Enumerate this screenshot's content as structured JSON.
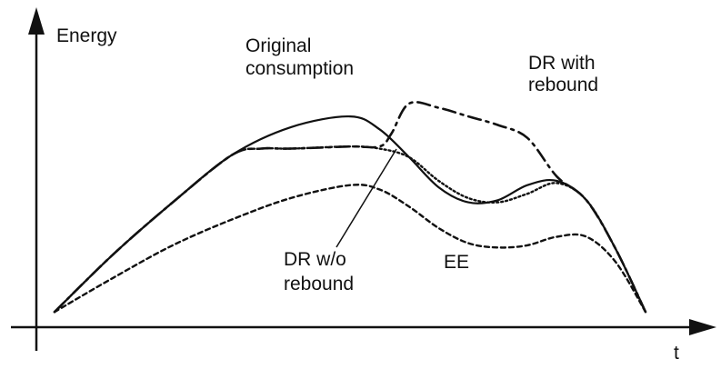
{
  "chart_data": {
    "type": "line",
    "xlabel": "t",
    "ylabel": "Energy",
    "series": [
      {
        "name": "Original consumption",
        "label_lines": [
          "Original",
          "consumption"
        ],
        "style": "solid",
        "x": [
          0,
          0.1,
          0.2,
          0.3,
          0.4,
          0.5,
          0.55,
          0.6,
          0.65,
          0.7,
          0.75,
          0.8,
          0.85,
          0.9,
          0.95,
          1.0
        ],
        "y": [
          0.05,
          0.32,
          0.56,
          0.78,
          0.91,
          0.96,
          0.9,
          0.77,
          0.63,
          0.56,
          0.57,
          0.64,
          0.66,
          0.57,
          0.34,
          0.05
        ]
      },
      {
        "name": "DR with rebound",
        "label_lines": [
          "DR with",
          "rebound"
        ],
        "style": "dash-dot",
        "x": [
          0,
          0.1,
          0.2,
          0.3,
          0.35,
          0.4,
          0.5,
          0.55,
          0.57,
          0.6,
          0.65,
          0.7,
          0.75,
          0.8,
          0.85,
          0.9,
          0.95,
          1.0
        ],
        "y": [
          0.05,
          0.32,
          0.56,
          0.78,
          0.81,
          0.81,
          0.82,
          0.82,
          0.88,
          1.02,
          1.0,
          0.96,
          0.92,
          0.86,
          0.68,
          0.57,
          0.34,
          0.05
        ]
      },
      {
        "name": "DR w/o rebound",
        "label_lines": [
          "DR w/o",
          "rebound"
        ],
        "style": "dotted",
        "x": [
          0,
          0.1,
          0.2,
          0.3,
          0.35,
          0.4,
          0.5,
          0.55,
          0.6,
          0.65,
          0.7,
          0.75,
          0.8,
          0.85,
          0.9,
          0.95,
          1.0
        ],
        "y": [
          0.05,
          0.32,
          0.56,
          0.78,
          0.81,
          0.81,
          0.82,
          0.81,
          0.77,
          0.66,
          0.58,
          0.56,
          0.6,
          0.65,
          0.57,
          0.34,
          0.05
        ]
      },
      {
        "name": "EE",
        "label_lines": [
          "EE"
        ],
        "style": "dashed",
        "x": [
          0,
          0.1,
          0.2,
          0.3,
          0.4,
          0.5,
          0.55,
          0.6,
          0.65,
          0.7,
          0.75,
          0.8,
          0.85,
          0.9,
          0.95,
          1.0
        ],
        "y": [
          0.05,
          0.21,
          0.36,
          0.48,
          0.58,
          0.64,
          0.62,
          0.54,
          0.44,
          0.37,
          0.35,
          0.36,
          0.4,
          0.4,
          0.28,
          0.05
        ]
      }
    ],
    "xlim": [
      0,
      1
    ],
    "ylim": [
      0,
      1.1
    ],
    "grid": false,
    "legend": "inline labels"
  }
}
